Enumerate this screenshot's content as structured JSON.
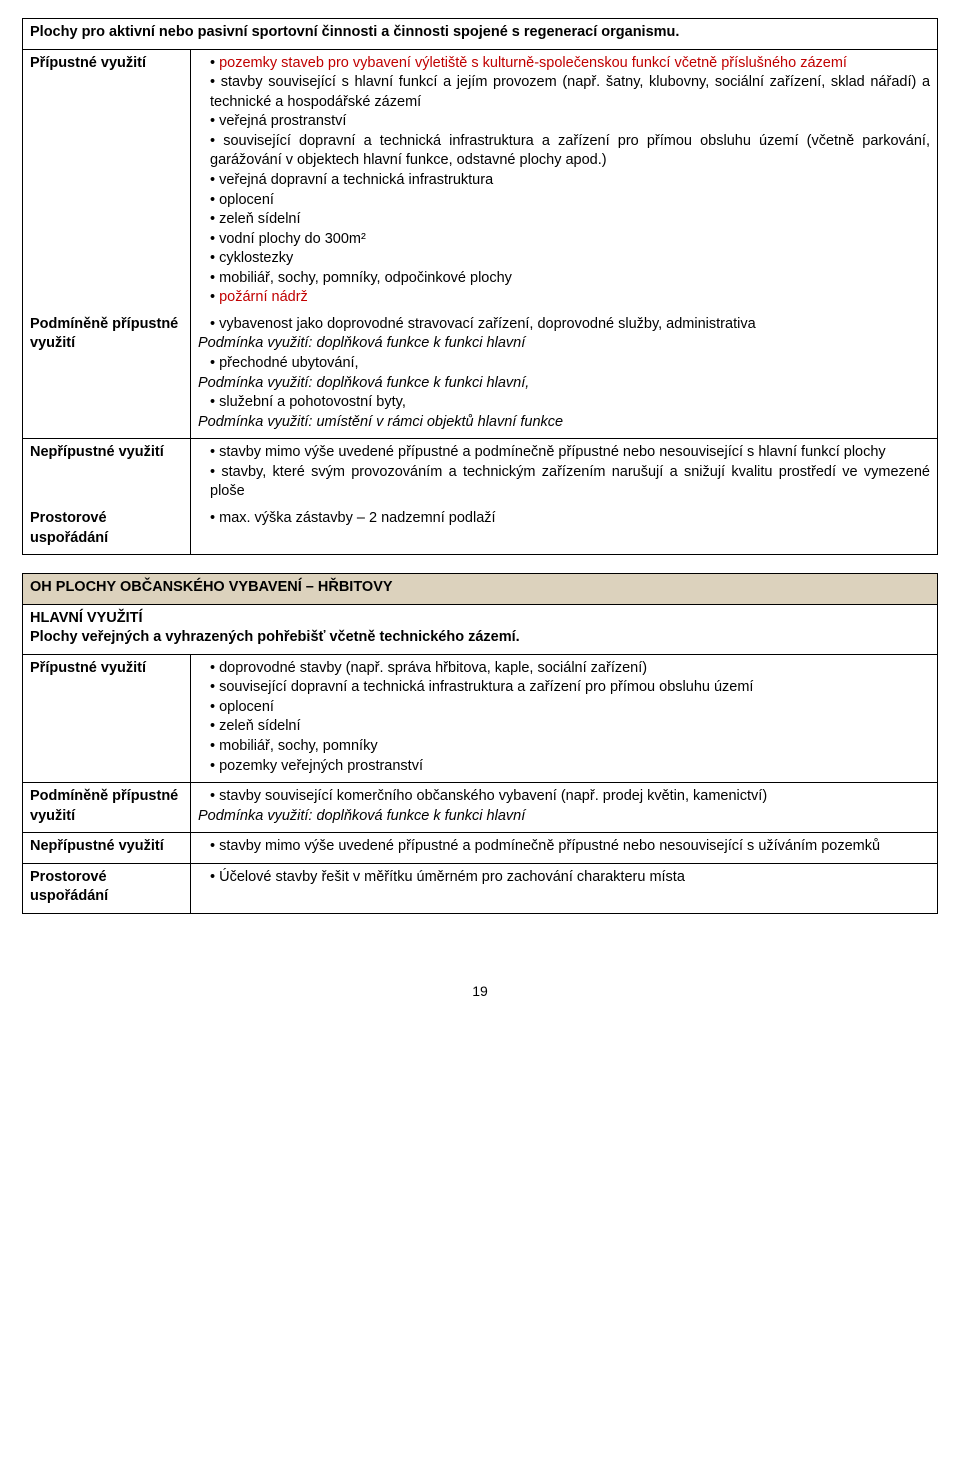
{
  "table1": {
    "header": "Plochy pro aktivní nebo pasivní sportovní činnosti a činnosti spojené s regenerací organismu.",
    "row1": {
      "label": "Přípustné využití",
      "intro": "pozemky staveb pro vybavení výletiště s kulturně-společenskou funkcí včetně příslušného zázemí",
      "line2": "stavby související s hlavní funkcí  a jejím provozem (např. šatny, klubovny, sociální zařízení, sklad nářadí) a technické a hospodářské zázemí",
      "line3": "veřejná prostranství",
      "line4": "související dopravní a technická infrastruktura a zařízení pro přímou obsluhu území (včetně parkování, garážování v objektech hlavní funkce, odstavné plochy apod.)",
      "line5": "veřejná dopravní a technická infrastruktura",
      "line6": "oplocení",
      "line7": "zeleň sídelní",
      "line8": "vodní plochy do 300m²",
      "line9": "cyklostezky",
      "line10": "mobiliář, sochy, pomníky, odpočinkové plochy",
      "line11": "požární nádrž"
    },
    "row2": {
      "label": "Podmíněně přípustné využití",
      "l1": "vybavenost jako doprovodné stravovací zařízení, doprovodné služby, administrativa",
      "c1": "Podmínka využití: doplňková funkce k funkci hlavní",
      "l2": "přechodné ubytování,",
      "c2": "Podmínka využití: doplňková funkce k funkci hlavní,",
      "l3": "služební a pohotovostní byty,",
      "c3": "Podmínka využití: umístění v rámci objektů hlavní funkce"
    },
    "row3": {
      "label": "Nepřípustné využití",
      "l1": "stavby mimo výše uvedené přípustné a podmínečně přípustné nebo nesouvisející s hlavní funkcí plochy",
      "l2": "stavby, které svým provozováním a technickým zařízením narušují a snižují kvalitu prostředí ve vymezené ploše"
    },
    "row4": {
      "label": "Prostorové uspořádání",
      "l1": "max. výška zástavby – 2 nadzemní podlaží"
    }
  },
  "section2": {
    "head": "OH    PLOCHY OBČANSKÉHO VYBAVENÍ – HŘBITOVY",
    "sub": "HLAVNÍ VYUŽITÍ",
    "sub2": "Plochy veřejných a vyhrazených pohřebišť včetně technického zázemí.",
    "r1": {
      "label": "Přípustné využití",
      "l1": "doprovodné stavby (např. správa hřbitova, kaple, sociální zařízení)",
      "l2": "související dopravní a technická infrastruktura a zařízení pro přímou obsluhu území",
      "l3": "oplocení",
      "l4": "zeleň sídelní",
      "l5": "mobiliář, sochy, pomníky",
      "l6": "pozemky veřejných prostranství"
    },
    "r2": {
      "label": "Podmíněně přípustné využití",
      "l1": "stavby související komerčního občanského vybavení (např. prodej květin, kamenictví)",
      "c1": "Podmínka využití: doplňková funkce k funkci hlavní"
    },
    "r3": {
      "label": "Nepřípustné využití",
      "l1": "stavby mimo výše uvedené přípustné a podmínečně přípustné nebo nesouvisející s užíváním pozemků"
    },
    "r4": {
      "label": "Prostorové uspořádání",
      "l1": "Účelové stavby řešit v měřítku úměrném pro zachování charakteru místa"
    }
  },
  "pagenum": "19"
}
